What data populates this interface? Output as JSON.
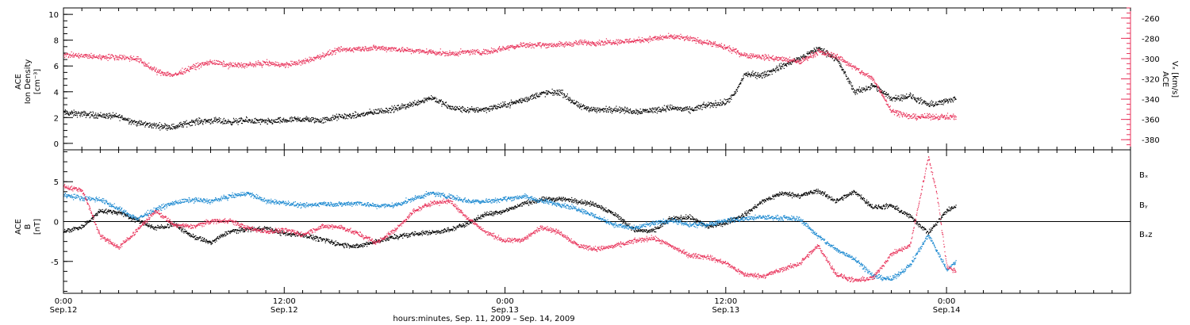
{
  "chart_data": [
    {
      "type": "scatter",
      "panel": "top",
      "ylabel_lines": [
        "ACE",
        "Ion Density",
        "[cm⁻³]"
      ],
      "ylabel_right_lines": [
        "ACE",
        "Vₓ [km/s]"
      ],
      "ylim": [
        -0.5,
        10.5
      ],
      "yticks": [
        "0",
        "2",
        "4",
        "6",
        "8",
        "10"
      ],
      "ylim_right": [
        -390,
        -250
      ],
      "yticks_right": [
        "-380",
        "-360",
        "-340",
        "-320",
        "-300",
        "-280",
        "-260"
      ],
      "series": [
        {
          "color": "#000000",
          "axis": "left",
          "points": [
            [
              0,
              2.4
            ],
            [
              2,
              2.2
            ],
            [
              3,
              2.1
            ],
            [
              4,
              1.6
            ],
            [
              5,
              1.4
            ],
            [
              6,
              1.3
            ],
            [
              7,
              1.7
            ],
            [
              8,
              1.8
            ],
            [
              9,
              1.7
            ],
            [
              10,
              1.8
            ],
            [
              11,
              1.7
            ],
            [
              12,
              1.8
            ],
            [
              13,
              1.9
            ],
            [
              14,
              1.8
            ],
            [
              15,
              2.1
            ],
            [
              16,
              2.2
            ],
            [
              17,
              2.5
            ],
            [
              18,
              2.7
            ],
            [
              19,
              3.1
            ],
            [
              20,
              3.6
            ],
            [
              21,
              2.8
            ],
            [
              22,
              2.6
            ],
            [
              23,
              2.7
            ],
            [
              24,
              3.0
            ],
            [
              25,
              3.4
            ],
            [
              26,
              3.9
            ],
            [
              27,
              4.0
            ],
            [
              28,
              2.9
            ],
            [
              29,
              2.6
            ],
            [
              30,
              2.7
            ],
            [
              31,
              2.5
            ],
            [
              32,
              2.6
            ],
            [
              33,
              2.8
            ],
            [
              34,
              2.6
            ],
            [
              35,
              3.0
            ],
            [
              36,
              3.2
            ],
            [
              36.5,
              3.9
            ],
            [
              37,
              5.4
            ],
            [
              38,
              5.3
            ],
            [
              39,
              6.0
            ],
            [
              40,
              6.6
            ],
            [
              41,
              7.4
            ],
            [
              42,
              6.6
            ],
            [
              43,
              4.0
            ],
            [
              44,
              4.5
            ],
            [
              45,
              3.5
            ],
            [
              46,
              3.7
            ],
            [
              47,
              3.0
            ],
            [
              48,
              3.3
            ],
            [
              48.5,
              3.6
            ]
          ]
        },
        {
          "color": "#e8325a",
          "axis": "right",
          "points": [
            [
              0,
              -296
            ],
            [
              2,
              -298
            ],
            [
              3,
              -298
            ],
            [
              4,
              -300
            ],
            [
              5,
              -312
            ],
            [
              6,
              -316
            ],
            [
              7,
              -308
            ],
            [
              8,
              -303
            ],
            [
              9,
              -306
            ],
            [
              10,
              -306
            ],
            [
              11,
              -304
            ],
            [
              12,
              -306
            ],
            [
              13,
              -303
            ],
            [
              14,
              -297
            ],
            [
              15,
              -291
            ],
            [
              16,
              -290
            ],
            [
              17,
              -289
            ],
            [
              18,
              -290
            ],
            [
              19,
              -292
            ],
            [
              20,
              -293
            ],
            [
              21,
              -295
            ],
            [
              22,
              -293
            ],
            [
              23,
              -293
            ],
            [
              24,
              -289
            ],
            [
              25,
              -286
            ],
            [
              26,
              -286
            ],
            [
              27,
              -286
            ],
            [
              28,
              -284
            ],
            [
              29,
              -284
            ],
            [
              30,
              -283
            ],
            [
              31,
              -282
            ],
            [
              32,
              -280
            ],
            [
              33,
              -278
            ],
            [
              34,
              -280
            ],
            [
              35,
              -284
            ],
            [
              36,
              -289
            ],
            [
              37,
              -296
            ],
            [
              38,
              -298
            ],
            [
              39,
              -300
            ],
            [
              40,
              -303
            ],
            [
              41,
              -293
            ],
            [
              42,
              -297
            ],
            [
              43,
              -309
            ],
            [
              44,
              -320
            ],
            [
              45,
              -351
            ],
            [
              46,
              -357
            ],
            [
              47,
              -357
            ],
            [
              48,
              -357
            ],
            [
              48.5,
              -357
            ]
          ]
        }
      ],
      "xlim": [
        0,
        58
      ]
    },
    {
      "type": "scatter",
      "panel": "bottom",
      "ylabel_lines": [
        "ACE",
        "B",
        "[nT]"
      ],
      "ylim": [
        -9,
        9
      ],
      "yticks": [
        "-5",
        "0",
        "5"
      ],
      "legend_placement": "right",
      "series": [
        {
          "name": "Bₓ",
          "color": "#000000",
          "points": [
            [
              0,
              -1.2
            ],
            [
              1,
              -0.6
            ],
            [
              2,
              1.4
            ],
            [
              3,
              1.2
            ],
            [
              4,
              0.2
            ],
            [
              5,
              -0.8
            ],
            [
              6,
              -0.3
            ],
            [
              7,
              -1.8
            ],
            [
              8,
              -2.6
            ],
            [
              9,
              -1.2
            ],
            [
              10,
              -0.9
            ],
            [
              11,
              -0.8
            ],
            [
              12,
              -1.5
            ],
            [
              13,
              -1.6
            ],
            [
              14,
              -2.2
            ],
            [
              15,
              -2.8
            ],
            [
              16,
              -3.1
            ],
            [
              17,
              -2.4
            ],
            [
              18,
              -1.9
            ],
            [
              19,
              -1.5
            ],
            [
              20,
              -1.3
            ],
            [
              21,
              -1.0
            ],
            [
              22,
              -0.1
            ],
            [
              23,
              1.0
            ],
            [
              24,
              1.4
            ],
            [
              25,
              2.3
            ],
            [
              26,
              2.8
            ],
            [
              27,
              2.9
            ],
            [
              28,
              2.6
            ],
            [
              29,
              2.1
            ],
            [
              30,
              0.9
            ],
            [
              31,
              -1.0
            ],
            [
              32,
              -1.2
            ],
            [
              33,
              0.4
            ],
            [
              34,
              0.6
            ],
            [
              35,
              -0.6
            ],
            [
              36,
              -0.1
            ],
            [
              37,
              0.9
            ],
            [
              38,
              2.6
            ],
            [
              39,
              3.6
            ],
            [
              40,
              3.3
            ],
            [
              41,
              3.9
            ],
            [
              42,
              2.6
            ],
            [
              43,
              3.8
            ],
            [
              44,
              1.8
            ],
            [
              45,
              2.0
            ],
            [
              46,
              0.7
            ],
            [
              47,
              -1.4
            ],
            [
              48,
              1.4
            ],
            [
              48.5,
              2.0
            ]
          ]
        },
        {
          "name": "Bᵧ",
          "color": "#1a88d0",
          "points": [
            [
              0,
              3.4
            ],
            [
              1,
              3.0
            ],
            [
              2,
              2.8
            ],
            [
              3,
              1.6
            ],
            [
              4,
              0.4
            ],
            [
              5,
              1.6
            ],
            [
              6,
              2.4
            ],
            [
              7,
              2.8
            ],
            [
              8,
              2.6
            ],
            [
              9,
              3.2
            ],
            [
              10,
              3.6
            ],
            [
              11,
              2.6
            ],
            [
              12,
              2.4
            ],
            [
              13,
              2.0
            ],
            [
              14,
              2.3
            ],
            [
              15,
              2.2
            ],
            [
              16,
              2.4
            ],
            [
              17,
              2.0
            ],
            [
              18,
              2.1
            ],
            [
              19,
              2.9
            ],
            [
              20,
              3.6
            ],
            [
              21,
              3.2
            ],
            [
              22,
              2.6
            ],
            [
              23,
              2.6
            ],
            [
              24,
              2.9
            ],
            [
              25,
              3.2
            ],
            [
              26,
              2.6
            ],
            [
              27,
              2.2
            ],
            [
              28,
              1.6
            ],
            [
              29,
              0.6
            ],
            [
              30,
              -0.4
            ],
            [
              31,
              -0.8
            ],
            [
              32,
              -0.2
            ],
            [
              33,
              0.2
            ],
            [
              34,
              -0.4
            ],
            [
              35,
              -0.3
            ],
            [
              36,
              0.2
            ],
            [
              37,
              0.4
            ],
            [
              38,
              0.6
            ],
            [
              39,
              0.5
            ],
            [
              40,
              0.4
            ],
            [
              41,
              -1.8
            ],
            [
              42,
              -3.5
            ],
            [
              43,
              -4.6
            ],
            [
              44,
              -6.8
            ],
            [
              45,
              -7.2
            ],
            [
              46,
              -5.4
            ],
            [
              47,
              -1.6
            ],
            [
              48,
              -6.0
            ],
            [
              48.5,
              -5.0
            ]
          ]
        },
        {
          "name": "Bₓz",
          "color": "#e8325a",
          "points": [
            [
              0,
              4.4
            ],
            [
              1,
              4.0
            ],
            [
              2,
              -1.8
            ],
            [
              3,
              -3.2
            ],
            [
              4,
              -1.0
            ],
            [
              5,
              1.4
            ],
            [
              6,
              -0.4
            ],
            [
              7,
              -0.6
            ],
            [
              8,
              0.1
            ],
            [
              9,
              0.2
            ],
            [
              10,
              -0.8
            ],
            [
              11,
              -1.2
            ],
            [
              12,
              -1.0
            ],
            [
              13,
              -1.6
            ],
            [
              14,
              -0.6
            ],
            [
              15,
              -0.6
            ],
            [
              16,
              -1.5
            ],
            [
              17,
              -2.6
            ],
            [
              18,
              -1.0
            ],
            [
              19,
              1.3
            ],
            [
              20,
              2.4
            ],
            [
              21,
              2.6
            ],
            [
              22,
              0.4
            ],
            [
              23,
              -1.4
            ],
            [
              24,
              -2.4
            ],
            [
              25,
              -2.2
            ],
            [
              26,
              -0.6
            ],
            [
              27,
              -1.4
            ],
            [
              28,
              -3.0
            ],
            [
              29,
              -3.4
            ],
            [
              30,
              -3.0
            ],
            [
              31,
              -2.4
            ],
            [
              32,
              -2.0
            ],
            [
              33,
              -3.0
            ],
            [
              34,
              -4.2
            ],
            [
              35,
              -4.4
            ],
            [
              36,
              -5.2
            ],
            [
              37,
              -6.6
            ],
            [
              38,
              -6.8
            ],
            [
              39,
              -6.0
            ],
            [
              40,
              -5.2
            ],
            [
              41,
              -3.0
            ],
            [
              42,
              -6.6
            ],
            [
              43,
              -7.4
            ],
            [
              44,
              -7.0
            ],
            [
              45,
              -4.0
            ],
            [
              46,
              -3.0
            ],
            [
              47,
              8.2
            ],
            [
              47.5,
              3.0
            ],
            [
              48,
              -5.6
            ],
            [
              48.5,
              -6.2
            ]
          ]
        }
      ],
      "xlim": [
        0,
        58
      ]
    }
  ],
  "x_axis": {
    "tick_labels": [
      {
        "x": 0,
        "time": "0:00",
        "date": "Sep.12"
      },
      {
        "x": 12,
        "time": "12:00",
        "date": "Sep.12"
      },
      {
        "x": 24,
        "time": "0:00",
        "date": "Sep.13"
      },
      {
        "x": 36,
        "time": "12:00",
        "date": "Sep.13"
      },
      {
        "x": 48,
        "time": "0:00",
        "date": "Sep.14"
      }
    ],
    "xlabel": "hours:minutes, Sep. 11, 2009 – Sep. 14, 2009"
  }
}
